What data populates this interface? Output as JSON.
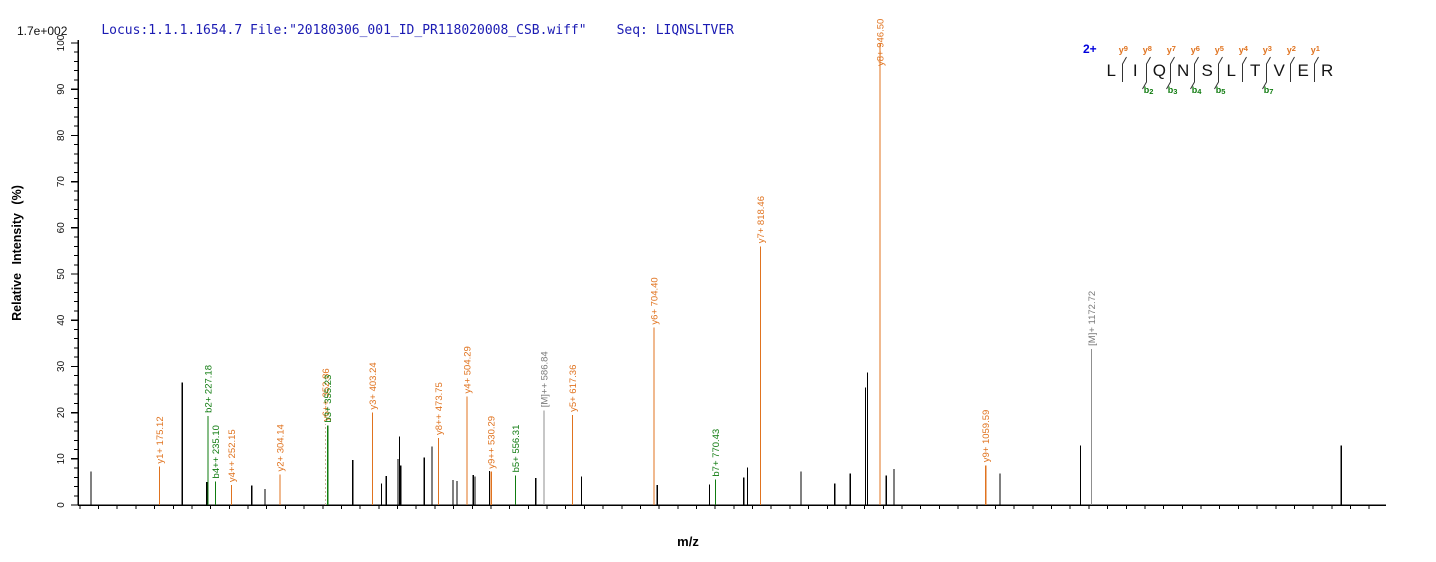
{
  "header": {
    "locus_file": "Locus:1.1.1.1654.7 File:\"20180306_001_ID_PR118020008_CSB.wiff\"",
    "seq": "Seq: LIQNSLTVER",
    "max_intensity": "1.7e+002"
  },
  "peptide": {
    "charge_label": "2+",
    "residues": [
      "L",
      "I",
      "Q",
      "N",
      "S",
      "L",
      "T",
      "V",
      "E",
      "R"
    ],
    "boundaries": [
      {
        "y": "9",
        "b": null
      },
      {
        "y": "8",
        "b": "2"
      },
      {
        "y": "7",
        "b": "3"
      },
      {
        "y": "6",
        "b": "4"
      },
      {
        "y": "5",
        "b": "5"
      },
      {
        "y": "4",
        "b": null
      },
      {
        "y": "3",
        "b": "7"
      },
      {
        "y": "2",
        "b": null
      },
      {
        "y": "1",
        "b": null
      }
    ]
  },
  "colors": {
    "y_ion": "#e0731f",
    "b_ion": "#0f7b0f",
    "precursor_line": "#8f8f8f",
    "precursor_label": "#7a7a7a",
    "peak": "#000000",
    "dashed_peak": "#c9b29b",
    "header_blue": "#1b1bb3",
    "charge_blue": "#0000dd",
    "axis": "#000000"
  },
  "chart_data": {
    "type": "bar",
    "subtype": "ms2-stick-spectrum",
    "xlabel": "m/z",
    "ylabel": "Relative Intensity (%)",
    "xlim": [
      88,
      1488
    ],
    "ylim": [
      0,
      100
    ],
    "x_major_step": 100,
    "x_minor_step": 20,
    "x_tick_min": 100,
    "x_tick_max": 1400,
    "y_major_step": 10,
    "y_minor_step": 2,
    "grid": false,
    "labeled_peaks": [
      {
        "label": "y1+ 175.12",
        "mz": 175.12,
        "intensity": 8.3,
        "ion": "y"
      },
      {
        "label": "b2+ 227.18",
        "mz": 227.18,
        "intensity": 19.3,
        "ion": "b"
      },
      {
        "label": "b4++ 235.10",
        "mz": 235.1,
        "intensity": 5.1,
        "ion": "b"
      },
      {
        "label": "y4++ 252.15",
        "mz": 252.15,
        "intensity": 4.3,
        "ion": "y"
      },
      {
        "label": "y2+ 304.14",
        "mz": 304.14,
        "intensity": 6.6,
        "ion": "y"
      },
      {
        "label": "y6++ 352.86",
        "mz": 352.86,
        "intensity": 17.5,
        "ion": "y",
        "dashed": true
      },
      {
        "label": "b3+ 355.23",
        "mz": 355.23,
        "intensity": 17.2,
        "ion": "b"
      },
      {
        "label": "y3+ 403.24",
        "mz": 403.24,
        "intensity": 20.0,
        "ion": "y"
      },
      {
        "label": "y8++ 473.75",
        "mz": 473.75,
        "intensity": 14.5,
        "ion": "y"
      },
      {
        "label": "y4+ 504.29",
        "mz": 504.29,
        "intensity": 23.5,
        "ion": "y"
      },
      {
        "label": "y9++ 530.29",
        "mz": 530.29,
        "intensity": 7.2,
        "ion": "y"
      },
      {
        "label": "b5+ 556.31",
        "mz": 556.31,
        "intensity": 6.4,
        "ion": "b"
      },
      {
        "label": "[M]++ 586.84",
        "mz": 586.84,
        "intensity": 20.5,
        "ion": "M"
      },
      {
        "label": "y5+ 617.36",
        "mz": 617.36,
        "intensity": 19.5,
        "ion": "y"
      },
      {
        "label": "y6+ 704.40",
        "mz": 704.4,
        "intensity": 38.4,
        "ion": "y"
      },
      {
        "label": "b7+ 770.43",
        "mz": 770.43,
        "intensity": 5.5,
        "ion": "b"
      },
      {
        "label": "y7+ 818.46",
        "mz": 818.46,
        "intensity": 56.0,
        "ion": "y"
      },
      {
        "label": "y8+ 946.50",
        "mz": 946.5,
        "intensity": 100.0,
        "ion": "y"
      },
      {
        "label": "y9+ 1059.59",
        "mz": 1059.59,
        "intensity": 8.6,
        "ion": "y"
      },
      {
        "label": "[M]+ 1172.72",
        "mz": 1172.72,
        "intensity": 33.8,
        "ion": "M"
      }
    ],
    "unlabeled_peaks": [
      {
        "mz": 102,
        "intensity": 7.2
      },
      {
        "mz": 199.5,
        "intensity": 26.5
      },
      {
        "mz": 225.8,
        "intensity": 5.0
      },
      {
        "mz": 274,
        "intensity": 4.2
      },
      {
        "mz": 288,
        "intensity": 3.5
      },
      {
        "mz": 382,
        "intensity": 9.7
      },
      {
        "mz": 413,
        "intensity": 4.6
      },
      {
        "mz": 418,
        "intensity": 6.3
      },
      {
        "mz": 430.5,
        "intensity": 10.0
      },
      {
        "mz": 432,
        "intensity": 14.8
      },
      {
        "mz": 433.5,
        "intensity": 8.5
      },
      {
        "mz": 458.5,
        "intensity": 10.3
      },
      {
        "mz": 467,
        "intensity": 12.7
      },
      {
        "mz": 489.5,
        "intensity": 5.4
      },
      {
        "mz": 493.5,
        "intensity": 5.2
      },
      {
        "mz": 511,
        "intensity": 6.5
      },
      {
        "mz": 513,
        "intensity": 6.2
      },
      {
        "mz": 528.5,
        "intensity": 7.4
      },
      {
        "mz": 578,
        "intensity": 5.8
      },
      {
        "mz": 627,
        "intensity": 6.2
      },
      {
        "mz": 708,
        "intensity": 4.3
      },
      {
        "mz": 764,
        "intensity": 4.4
      },
      {
        "mz": 800.5,
        "intensity": 5.9
      },
      {
        "mz": 804.5,
        "intensity": 8.1
      },
      {
        "mz": 862,
        "intensity": 7.3
      },
      {
        "mz": 898,
        "intensity": 4.6
      },
      {
        "mz": 914.5,
        "intensity": 6.8
      },
      {
        "mz": 931,
        "intensity": 25.4
      },
      {
        "mz": 933,
        "intensity": 28.7
      },
      {
        "mz": 953,
        "intensity": 6.4
      },
      {
        "mz": 961.5,
        "intensity": 7.8
      },
      {
        "mz": 1075,
        "intensity": 6.8
      },
      {
        "mz": 1161,
        "intensity": 12.9
      },
      {
        "mz": 1440,
        "intensity": 12.9
      }
    ]
  }
}
